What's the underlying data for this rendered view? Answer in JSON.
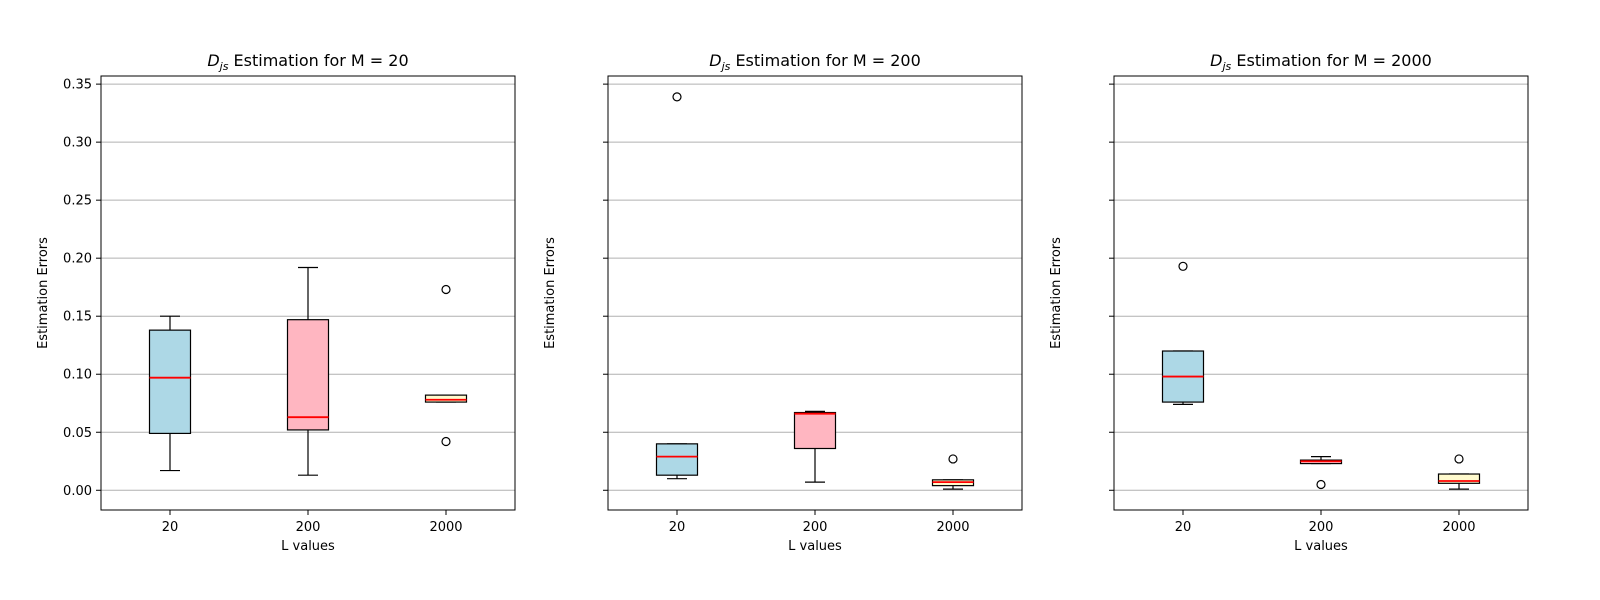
{
  "figure": {
    "subplot_count": 3,
    "shared_y": true
  },
  "chart_data": [
    {
      "type": "box",
      "title": "D_js Estimation for M = 20",
      "title_parts": {
        "symbol": "D",
        "subscript": "js",
        "rest": " Estimation for M = 20"
      },
      "xlabel": "L values",
      "ylabel": "Estimation Errors",
      "categories": [
        "20",
        "200",
        "2000"
      ],
      "ylim": [
        -0.017,
        0.357
      ],
      "yticks": [
        "0.00",
        "0.05",
        "0.10",
        "0.15",
        "0.20",
        "0.25",
        "0.30",
        "0.35"
      ],
      "show_ytick_labels": true,
      "grid": "y",
      "boxes": [
        {
          "category": "20",
          "whisker_low": 0.017,
          "q1": 0.049,
          "median": 0.097,
          "q3": 0.138,
          "whisker_high": 0.15,
          "fliers": [],
          "fill": "#add8e6"
        },
        {
          "category": "200",
          "whisker_low": 0.013,
          "q1": 0.052,
          "median": 0.063,
          "q3": 0.147,
          "whisker_high": 0.192,
          "fliers": [],
          "fill": "#ffb6c1"
        },
        {
          "category": "2000",
          "whisker_low": 0.076,
          "q1": 0.076,
          "median": 0.078,
          "q3": 0.082,
          "whisker_high": 0.082,
          "fliers": [
            0.173,
            0.042
          ],
          "fill": "#fffacd"
        }
      ]
    },
    {
      "type": "box",
      "title": "D_js Estimation for M = 200",
      "title_parts": {
        "symbol": "D",
        "subscript": "js",
        "rest": " Estimation for M = 200"
      },
      "xlabel": "L values",
      "ylabel": "Estimation Errors",
      "categories": [
        "20",
        "200",
        "2000"
      ],
      "ylim": [
        -0.017,
        0.357
      ],
      "yticks": [
        "0.00",
        "0.05",
        "0.10",
        "0.15",
        "0.20",
        "0.25",
        "0.30",
        "0.35"
      ],
      "show_ytick_labels": false,
      "grid": "y",
      "boxes": [
        {
          "category": "20",
          "whisker_low": 0.01,
          "q1": 0.013,
          "median": 0.029,
          "q3": 0.04,
          "whisker_high": 0.04,
          "fliers": [
            0.339
          ],
          "fill": "#add8e6"
        },
        {
          "category": "200",
          "whisker_low": 0.007,
          "q1": 0.036,
          "median": 0.066,
          "q3": 0.067,
          "whisker_high": 0.068,
          "fliers": [],
          "fill": "#ffb6c1"
        },
        {
          "category": "2000",
          "whisker_low": 0.001,
          "q1": 0.004,
          "median": 0.007,
          "q3": 0.009,
          "whisker_high": 0.009,
          "fliers": [
            0.027
          ],
          "fill": "#fffacd"
        }
      ]
    },
    {
      "type": "box",
      "title": "D_js Estimation for M = 2000",
      "title_parts": {
        "symbol": "D",
        "subscript": "js",
        "rest": " Estimation for M = 2000"
      },
      "xlabel": "L values",
      "ylabel": "Estimation Errors",
      "categories": [
        "20",
        "200",
        "2000"
      ],
      "ylim": [
        -0.017,
        0.357
      ],
      "yticks": [
        "0.00",
        "0.05",
        "0.10",
        "0.15",
        "0.20",
        "0.25",
        "0.30",
        "0.35"
      ],
      "show_ytick_labels": false,
      "grid": "y",
      "boxes": [
        {
          "category": "20",
          "whisker_low": 0.074,
          "q1": 0.076,
          "median": 0.098,
          "q3": 0.12,
          "whisker_high": 0.12,
          "fliers": [
            0.193
          ],
          "fill": "#add8e6"
        },
        {
          "category": "200",
          "whisker_low": 0.023,
          "q1": 0.023,
          "median": 0.025,
          "q3": 0.026,
          "whisker_high": 0.029,
          "fliers": [
            0.005
          ],
          "fill": "#ffb6c1"
        },
        {
          "category": "2000",
          "whisker_low": 0.001,
          "q1": 0.006,
          "median": 0.008,
          "q3": 0.014,
          "whisker_high": 0.014,
          "fliers": [
            0.027
          ],
          "fill": "#fffacd"
        }
      ]
    }
  ],
  "colors": {
    "median": "#ff0000",
    "grid": "#b0b0b0",
    "axes": "#000000",
    "box_edge": "#000000"
  }
}
